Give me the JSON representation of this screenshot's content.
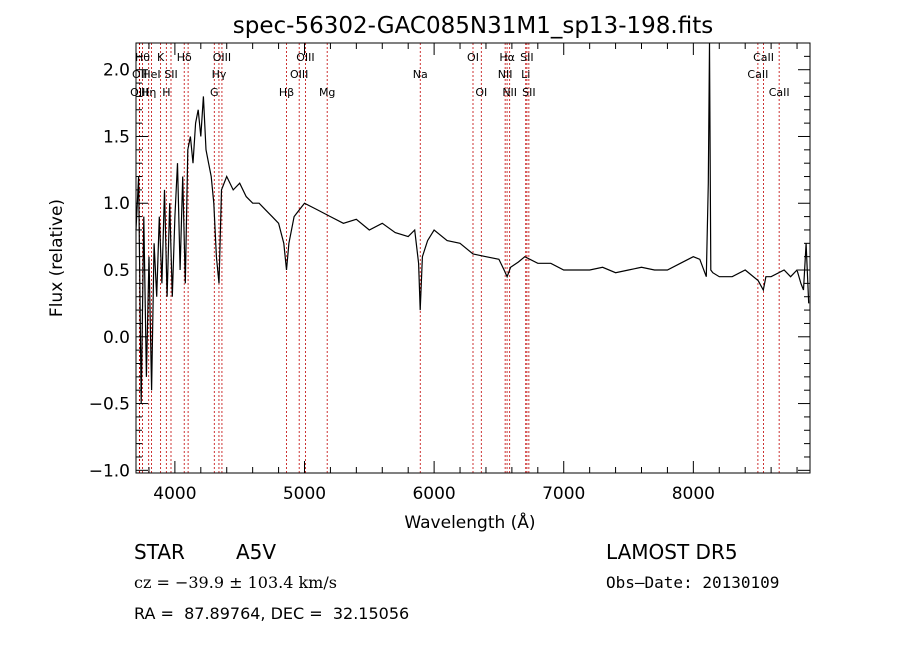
{
  "chart_data": {
    "type": "line",
    "title": "spec-56302-GAC085N31M1_sp13-198.fits",
    "xlabel": "Wavelength (Å)",
    "ylabel": "Flux (relative)",
    "xlim": [
      3700,
      8900
    ],
    "ylim": [
      -1.02,
      2.2
    ],
    "xticks": [
      4000,
      5000,
      6000,
      7000,
      8000
    ],
    "yticks": [
      -1.0,
      -0.5,
      0.0,
      0.5,
      1.0,
      1.5,
      2.0
    ],
    "ytick_labels": [
      "−1.0",
      "−0.5",
      "0.0",
      "0.5",
      "1.0",
      "1.5",
      "2.0"
    ],
    "grid": false,
    "series": [
      {
        "x": [
          3700,
          3720,
          3740,
          3760,
          3780,
          3800,
          3820,
          3840,
          3860,
          3880,
          3900,
          3920,
          3940,
          3960,
          3980,
          4000,
          4020,
          4040,
          4060,
          4080,
          4100,
          4120,
          4140,
          4160,
          4180,
          4200,
          4220,
          4240,
          4260,
          4280,
          4300,
          4320,
          4340,
          4360,
          4380,
          4400,
          4450,
          4500,
          4550,
          4600,
          4650,
          4700,
          4750,
          4800,
          4840,
          4861,
          4880,
          4920,
          4960,
          5000,
          5100,
          5200,
          5300,
          5400,
          5500,
          5600,
          5700,
          5800,
          5850,
          5880,
          5893,
          5910,
          5950,
          6000,
          6100,
          6200,
          6300,
          6400,
          6500,
          6540,
          6563,
          6590,
          6650,
          6700,
          6800,
          6900,
          7000,
          7100,
          7200,
          7300,
          7400,
          7500,
          7600,
          7700,
          7800,
          7900,
          8000,
          8050,
          8100,
          8115,
          8125,
          8135,
          8150,
          8200,
          8300,
          8400,
          8500,
          8540,
          8560,
          8600,
          8700,
          8750,
          8800,
          8830,
          8850,
          8870,
          8890
        ],
        "y": [
          0.8,
          1.2,
          -0.5,
          0.9,
          -0.3,
          0.6,
          -0.4,
          0.7,
          0.3,
          0.9,
          0.4,
          1.1,
          0.3,
          1.0,
          0.3,
          0.9,
          1.3,
          0.5,
          1.2,
          0.4,
          1.4,
          1.5,
          1.3,
          1.6,
          1.7,
          1.5,
          1.8,
          1.4,
          1.3,
          1.2,
          1.0,
          0.6,
          0.4,
          1.1,
          1.15,
          1.2,
          1.1,
          1.15,
          1.05,
          1.0,
          1.0,
          0.95,
          0.9,
          0.85,
          0.7,
          0.5,
          0.7,
          0.9,
          0.95,
          1.0,
          0.95,
          0.9,
          0.85,
          0.88,
          0.8,
          0.85,
          0.78,
          0.75,
          0.8,
          0.55,
          0.2,
          0.6,
          0.72,
          0.8,
          0.72,
          0.7,
          0.62,
          0.6,
          0.58,
          0.5,
          0.45,
          0.52,
          0.56,
          0.6,
          0.55,
          0.55,
          0.5,
          0.5,
          0.5,
          0.52,
          0.48,
          0.5,
          0.52,
          0.5,
          0.5,
          0.55,
          0.6,
          0.58,
          0.45,
          1.15,
          2.2,
          0.5,
          0.48,
          0.45,
          0.45,
          0.5,
          0.42,
          0.35,
          0.45,
          0.45,
          0.5,
          0.45,
          0.5,
          0.4,
          0.35,
          0.7,
          0.25
        ]
      }
    ],
    "lines": [
      {
        "x": 3750,
        "label": "Hθ",
        "row": 1
      },
      {
        "x": 3728,
        "label": "OII",
        "row": 2
      },
      {
        "x": 3726,
        "label": "OIII",
        "row": 3
      },
      {
        "x": 3798,
        "label": "Hη",
        "row": 3
      },
      {
        "x": 3820,
        "label": "HeI",
        "row": 2
      },
      {
        "x": 3890,
        "label": "K",
        "row": 1
      },
      {
        "x": 3934,
        "label": "H",
        "row": 3
      },
      {
        "x": 3970,
        "label": "SII",
        "row": 2
      },
      {
        "x": 4072,
        "label": "Hδ",
        "row": 1
      },
      {
        "x": 4102,
        "label": "",
        "row": 0
      },
      {
        "x": 4340,
        "label": "Hγ",
        "row": 2
      },
      {
        "x": 4304,
        "label": "G",
        "row": 3
      },
      {
        "x": 4363,
        "label": "OIII",
        "row": 1
      },
      {
        "x": 4861,
        "label": "Hβ",
        "row": 3
      },
      {
        "x": 4959,
        "label": "OIII",
        "row": 2
      },
      {
        "x": 5007,
        "label": "OIII",
        "row": 1
      },
      {
        "x": 5175,
        "label": "Mg",
        "row": 3
      },
      {
        "x": 5893,
        "label": "Na",
        "row": 2
      },
      {
        "x": 6300,
        "label": "OI",
        "row": 1
      },
      {
        "x": 6364,
        "label": "OI",
        "row": 3
      },
      {
        "x": 6548,
        "label": "NII",
        "row": 2
      },
      {
        "x": 6563,
        "label": "Hα",
        "row": 1
      },
      {
        "x": 6583,
        "label": "NII",
        "row": 3
      },
      {
        "x": 6707,
        "label": "Li",
        "row": 2
      },
      {
        "x": 6716,
        "label": "SII",
        "row": 1
      },
      {
        "x": 6731,
        "label": "SII",
        "row": 3
      },
      {
        "x": 8498,
        "label": "CaII",
        "row": 2
      },
      {
        "x": 8542,
        "label": "CaII",
        "row": 1
      },
      {
        "x": 8662,
        "label": "CaII",
        "row": 3
      }
    ]
  },
  "info": {
    "class_label": "STAR",
    "subclass": "A5V",
    "survey": "LAMOST DR5",
    "cz": "cz = −39.9 ± 103.4 km/s",
    "obs_date": "Obs–Date: 20130109",
    "radec": "RA =  87.89764, DEC =  32.15056"
  }
}
